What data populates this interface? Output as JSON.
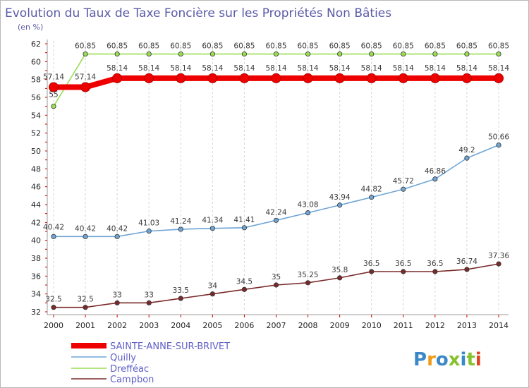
{
  "chart_data": {
    "type": "line",
    "title": "Evolution du Taux de Taxe Foncière sur les Propriétés Non Bâties",
    "subtitle": "(en %)",
    "x": [
      "2000",
      "2001",
      "2002",
      "2003",
      "2004",
      "2005",
      "2006",
      "2007",
      "2008",
      "2009",
      "2010",
      "2011",
      "2012",
      "2013",
      "2014"
    ],
    "ylim": [
      32,
      62
    ],
    "yticks": [
      32,
      34,
      36,
      38,
      40,
      42,
      44,
      46,
      48,
      50,
      52,
      54,
      56,
      58,
      60,
      62
    ],
    "grid": "vertical dashed",
    "legend_position": "bottom-left",
    "series": [
      {
        "name": "SAINTE-ANNE-SUR-BRIVET",
        "color": "#ee0000",
        "values": [
          57.14,
          57.14,
          58.14,
          58.14,
          58.14,
          58.14,
          58.14,
          58.14,
          58.14,
          58.14,
          58.14,
          58.14,
          58.14,
          58.14,
          58.14
        ],
        "labels": [
          "57.14",
          "57.14",
          "58.14",
          "58.14",
          "58.14",
          "58.14",
          "58.14",
          "58.14",
          "58.14",
          "58.14",
          "58.14",
          "58.14",
          "58.14",
          "58.14",
          "58.14"
        ]
      },
      {
        "name": "Quilly",
        "color": "#6fa5d5",
        "values": [
          40.42,
          40.42,
          40.42,
          41.03,
          41.24,
          41.34,
          41.41,
          42.24,
          43.08,
          43.94,
          44.82,
          45.72,
          46.86,
          49.2,
          50.66
        ],
        "labels": [
          "40.42",
          "40.42",
          "40.42",
          "41.03",
          "41.24",
          "41.34",
          "41.41",
          "42.24",
          "43.08",
          "43.94",
          "44.82",
          "45.72",
          "46.86",
          "49.2",
          "50.66"
        ]
      },
      {
        "name": "Drefféac",
        "color": "#99dd55",
        "values": [
          55,
          60.85,
          60.85,
          60.85,
          60.85,
          60.85,
          60.85,
          60.85,
          60.85,
          60.85,
          60.85,
          60.85,
          60.85,
          60.85,
          60.85
        ],
        "labels": [
          "55",
          "60.85",
          "60.85",
          "60.85",
          "60.85",
          "60.85",
          "60.85",
          "60.85",
          "60.85",
          "60.85",
          "60.85",
          "60.85",
          "60.85",
          "60.85",
          "60.85"
        ]
      },
      {
        "name": "Campbon",
        "color": "#7a2a2a",
        "values": [
          32.5,
          32.5,
          33,
          33,
          33.5,
          34,
          34.5,
          35,
          35.25,
          35.8,
          36.5,
          36.5,
          36.5,
          36.74,
          37.36
        ],
        "labels": [
          "32.5",
          "32.5",
          "33",
          "33",
          "33.5",
          "34",
          "34.5",
          "35",
          "35.25",
          "35.8",
          "36.5",
          "36.5",
          "36.5",
          "36.74",
          "37.36"
        ]
      }
    ]
  },
  "watermark": {
    "text": "Proxiti",
    "colors": [
      "#3a88c8",
      "#f09a18",
      "#3a88c8",
      "#88c030",
      "#3a88c8",
      "#88c030",
      "#e04020"
    ]
  }
}
